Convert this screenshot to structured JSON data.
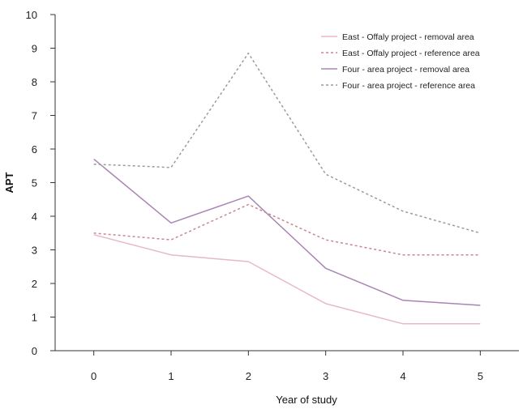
{
  "chart_data": {
    "type": "line",
    "xlabel": "Year of study",
    "ylabel": "APT",
    "x": [
      0,
      1,
      2,
      3,
      4,
      5
    ],
    "xlim": [
      -0.5,
      5.5
    ],
    "ylim": [
      0,
      10
    ],
    "yticks": [
      0,
      1,
      2,
      3,
      4,
      5,
      6,
      7,
      8,
      9,
      10
    ],
    "grid": false,
    "legend_position": "top-right",
    "series": [
      {
        "name": "East - Offaly project - removal area",
        "values": [
          3.45,
          2.85,
          2.65,
          1.4,
          0.8,
          0.8
        ],
        "color": "#e7b8c8",
        "dash": "solid"
      },
      {
        "name": "East - Offaly project - reference area",
        "values": [
          3.5,
          3.3,
          4.35,
          3.3,
          2.85,
          2.85
        ],
        "color": "#c9868e",
        "dash": "dashed"
      },
      {
        "name": "Four - area project - removal area",
        "values": [
          5.7,
          3.8,
          4.6,
          2.45,
          1.5,
          1.35
        ],
        "color": "#a985b4",
        "dash": "solid"
      },
      {
        "name": "Four - area project - reference area",
        "values": [
          5.55,
          5.45,
          8.85,
          5.25,
          4.15,
          3.5
        ],
        "color": "#9a9a9a",
        "dash": "dashed"
      }
    ]
  }
}
